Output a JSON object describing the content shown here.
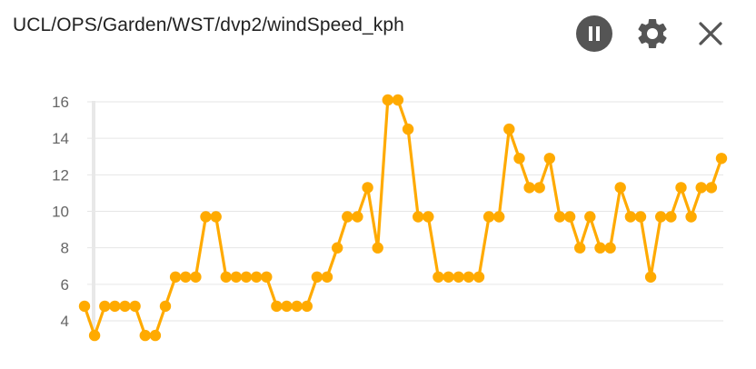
{
  "widget": {
    "title": "UCL/OPS/Garden/WST/dvp2/windSpeed_kph",
    "controls": [
      {
        "name": "pause-icon",
        "label": "pause"
      },
      {
        "name": "gear-icon",
        "label": "settings"
      },
      {
        "name": "close-icon",
        "label": "close"
      }
    ]
  },
  "colors": {
    "series": "#FFAA00",
    "grid": "#E6E6E6",
    "tick_text": "#666666",
    "control_dark": "#555555"
  },
  "chart_data": {
    "type": "line",
    "title": "UCL/OPS/Garden/WST/dvp2/windSpeed_kph",
    "xlabel": "",
    "ylabel": "",
    "ylim": [
      3,
      16.5
    ],
    "yticks": [
      4,
      6,
      8,
      10,
      12,
      14,
      16
    ],
    "grid": true,
    "legend": "none",
    "series": [
      {
        "values": [
          4.8,
          3.2,
          4.8,
          4.8,
          4.8,
          4.8,
          3.2,
          3.2,
          4.8,
          6.4,
          6.4,
          6.4,
          9.7,
          9.7,
          6.4,
          6.4,
          6.4,
          6.4,
          6.4,
          4.8,
          4.8,
          4.8,
          4.8,
          6.4,
          6.4,
          8.0,
          9.7,
          9.7,
          11.3,
          8.0,
          16.1,
          16.1,
          14.5,
          9.7,
          9.7,
          6.4,
          6.4,
          6.4,
          6.4,
          6.4,
          9.7,
          9.7,
          14.5,
          12.9,
          11.3,
          11.3,
          12.9,
          9.7,
          9.7,
          8.0,
          9.7,
          8.0,
          8.0,
          11.3,
          9.7,
          9.7,
          6.4,
          9.7,
          9.7,
          11.3,
          9.7,
          11.3,
          11.3,
          12.9
        ]
      }
    ]
  }
}
